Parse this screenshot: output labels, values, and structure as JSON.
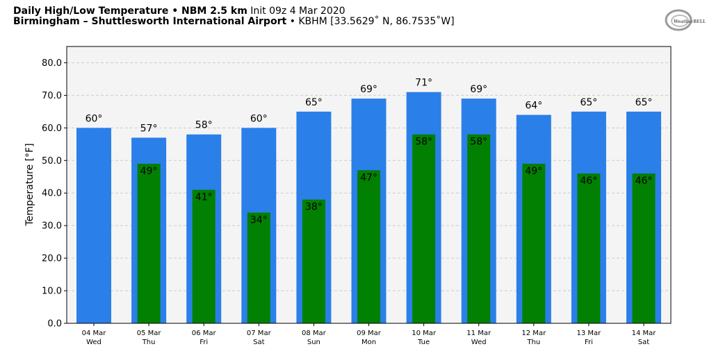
{
  "header": {
    "title_bold": "Daily High/Low Temperature • NBM 2.5 km",
    "title_init": " Init 09z 4 Mar 2020",
    "location_bold": "Birmingham – Shuttlesworth International Airport",
    "location_rest": " • KBHM [33.5629˚ N, 86.7535˚W]"
  },
  "logo": {
    "text": "WeatherBELL"
  },
  "colors": {
    "high": "#2b7fe9",
    "low": "#028002",
    "plot_bg": "#f4f4f4",
    "grid": "#cccccc"
  },
  "chart_data": {
    "type": "bar",
    "ylabel": "Temperature [°F]",
    "ylim": [
      0,
      85
    ],
    "yticks": [
      "0.0",
      "10.0",
      "20.0",
      "30.0",
      "40.0",
      "50.0",
      "60.0",
      "70.0",
      "80.0"
    ],
    "grid": true,
    "categories": [
      {
        "date": "04 Mar",
        "day": "Wed"
      },
      {
        "date": "05 Mar",
        "day": "Thu"
      },
      {
        "date": "06 Mar",
        "day": "Fri"
      },
      {
        "date": "07 Mar",
        "day": "Sat"
      },
      {
        "date": "08 Mar",
        "day": "Sun"
      },
      {
        "date": "09 Mar",
        "day": "Mon"
      },
      {
        "date": "10 Mar",
        "day": "Tue"
      },
      {
        "date": "11 Mar",
        "day": "Wed"
      },
      {
        "date": "12 Mar",
        "day": "Thu"
      },
      {
        "date": "13 Mar",
        "day": "Fri"
      },
      {
        "date": "14 Mar",
        "day": "Sat"
      }
    ],
    "series": [
      {
        "key": "high",
        "values": [
          60,
          57,
          58,
          60,
          65,
          69,
          71,
          69,
          64,
          65,
          65
        ],
        "labels": [
          "60°",
          "57°",
          "58°",
          "60°",
          "65°",
          "69°",
          "71°",
          "69°",
          "64°",
          "65°",
          "65°"
        ]
      },
      {
        "key": "low",
        "values": [
          null,
          49,
          41,
          34,
          38,
          47,
          58,
          58,
          49,
          46,
          46
        ],
        "labels": [
          null,
          "49°",
          "41°",
          "34°",
          "38°",
          "47°",
          "58°",
          "58°",
          "49°",
          "46°",
          "46°"
        ]
      }
    ]
  }
}
